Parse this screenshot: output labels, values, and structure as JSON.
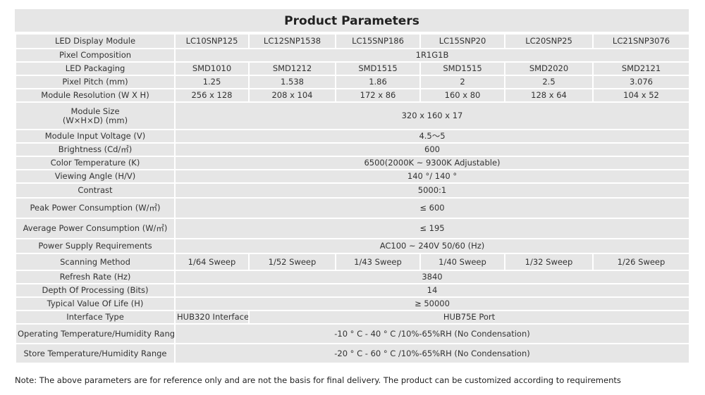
{
  "title": "Product Parameters",
  "models": [
    "LC10SNP125",
    "LC12SNP1538",
    "LC15SNP186",
    "LC15SNP20",
    "LC20SNP25",
    "LC21SNP3076"
  ],
  "labels": {
    "module": "LED Display Module",
    "pixel_composition": "Pixel Composition",
    "led_packaging": "LED Packaging",
    "pixel_pitch": "Pixel Pitch (mm)",
    "module_resolution": "Module Resolution (W X H)",
    "module_size_1": "Module Size",
    "module_size_2": "(W×H×D) (mm)",
    "input_voltage": "Module Input Voltage (V)",
    "brightness": "Brightness (Cd/㎡)",
    "color_temp": "Color Temperature (K)",
    "viewing_angle": "Viewing Angle (H/V)",
    "contrast": "Contrast",
    "peak_power": "Peak Power Consumption (W/㎡)",
    "avg_power": "Average Power Consumption (W/㎡)",
    "power_supply": "Power Supply Requirements",
    "scanning": "Scanning Method",
    "refresh": "Refresh Rate (Hz)",
    "depth": "Depth Of Processing (Bits)",
    "life": "Typical Value Of Life (H)",
    "interface": "Interface Type",
    "op_temp": "Operating Temperature/Humidity Range",
    "store_temp": "Store Temperature/Humidity Range"
  },
  "values": {
    "pixel_composition": "1R1G1B",
    "led_packaging": [
      "SMD1010",
      "SMD1212",
      "SMD1515",
      "SMD1515",
      "SMD2020",
      "SMD2121"
    ],
    "pixel_pitch": [
      "1.25",
      "1.538",
      "1.86",
      "2",
      "2.5",
      "3.076"
    ],
    "module_resolution": [
      "256 x 128",
      "208 x 104",
      "172 x 86",
      "160 x 80",
      "128 x 64",
      "104 x 52"
    ],
    "module_size": "320 x 160 x 17",
    "input_voltage": "4.5～5",
    "brightness": "600",
    "color_temp": "6500(2000K ~ 9300K Adjustable)",
    "viewing_angle": "140 °/ 140 °",
    "contrast": "5000:1",
    "peak_power": "≤ 600",
    "avg_power": "≤ 195",
    "power_supply": "AC100 ~ 240V 50/60 (Hz)",
    "scanning": [
      "1/64 Sweep",
      "1/52 Sweep",
      "1/43 Sweep",
      "1/40 Sweep",
      "1/32 Sweep",
      "1/26 Sweep"
    ],
    "refresh": "3840",
    "depth": "14",
    "life": "≥ 50000",
    "interface_first": "HUB320 Interface",
    "interface_rest": "HUB75E Port",
    "op_temp": "-10 ° C - 40 ° C /10%-65%RH (No Condensation)",
    "store_temp": "-20 ° C - 60 ° C /10%-65%RH (No Condensation)"
  },
  "note": "Note: The above parameters are for reference only and are not the basis for final delivery. The product can be customized according to requirements"
}
